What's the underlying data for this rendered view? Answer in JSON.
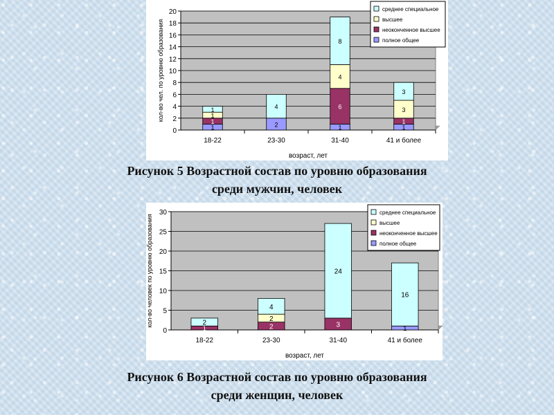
{
  "colors": {
    "полное общее": "#9999ff",
    "неоконченное высшее": "#993366",
    "высшее": "#ffffcc",
    "среднее специальное": "#ccffff",
    "plot_bg": "#c0c0c0",
    "grid": "#000000"
  },
  "captions": [
    {
      "line1": "Рисунок 5 Возрастной состав по уровню образования",
      "line2": "среди мужчин, человек"
    },
    {
      "line1": "Рисунок 6 Возрастной состав по уровню образования",
      "line2": "среди женщин, человек"
    }
  ],
  "chart_data": [
    {
      "type": "bar",
      "stacked": true,
      "categories": [
        "18-22",
        "23-30",
        "31-40",
        "41 и более"
      ],
      "xlabel": "возраст, лет",
      "ylabel": "кол-во чел. по уровню образования",
      "ylim": [
        0,
        20
      ],
      "yticks": [
        0,
        2,
        4,
        6,
        8,
        10,
        12,
        14,
        16,
        18,
        20
      ],
      "grid": true,
      "legend_position": "top-right",
      "series": [
        {
          "name": "полное общее",
          "values": [
            1,
            2,
            1,
            1
          ],
          "labels": [
            "1",
            "2",
            "1",
            "1"
          ]
        },
        {
          "name": "неоконченное высшее",
          "values": [
            1,
            0,
            6,
            1
          ],
          "labels": [
            "1",
            "",
            "6",
            "1"
          ]
        },
        {
          "name": "высшее",
          "values": [
            1,
            0,
            4,
            3
          ],
          "labels": [
            "1",
            "",
            "4",
            "3"
          ]
        },
        {
          "name": "среднее специальное",
          "values": [
            1,
            4,
            8,
            3
          ],
          "labels": [
            "1",
            "4",
            "8",
            "3"
          ]
        }
      ],
      "legend_order": [
        "среднее специальное",
        "высшее",
        "неоконченное высшее",
        "полное общее"
      ]
    },
    {
      "type": "bar",
      "stacked": true,
      "categories": [
        "18-22",
        "23-30",
        "31-40",
        "41 и более"
      ],
      "xlabel": "возраст, лет",
      "ylabel": "кол-во человек по уровню образования",
      "ylim": [
        0,
        30
      ],
      "yticks": [
        0,
        5,
        10,
        15,
        20,
        25,
        30
      ],
      "grid": true,
      "legend_position": "top-right",
      "series": [
        {
          "name": "полное общее",
          "values": [
            0,
            0,
            0,
            1
          ],
          "labels": [
            "",
            "",
            "",
            "1"
          ]
        },
        {
          "name": "неоконченное высшее",
          "values": [
            1,
            2,
            3,
            0
          ],
          "labels": [
            "1",
            "2",
            "3",
            ""
          ]
        },
        {
          "name": "высшее",
          "values": [
            0,
            2,
            0,
            0
          ],
          "labels": [
            "",
            "2",
            "",
            ""
          ]
        },
        {
          "name": "среднее специальное",
          "values": [
            2,
            4,
            24,
            16
          ],
          "labels": [
            "2",
            "4",
            "24",
            "16"
          ]
        }
      ],
      "legend_order": [
        "среднее специальное",
        "высшее",
        "неоконченное высшее",
        "полное общее"
      ]
    }
  ]
}
